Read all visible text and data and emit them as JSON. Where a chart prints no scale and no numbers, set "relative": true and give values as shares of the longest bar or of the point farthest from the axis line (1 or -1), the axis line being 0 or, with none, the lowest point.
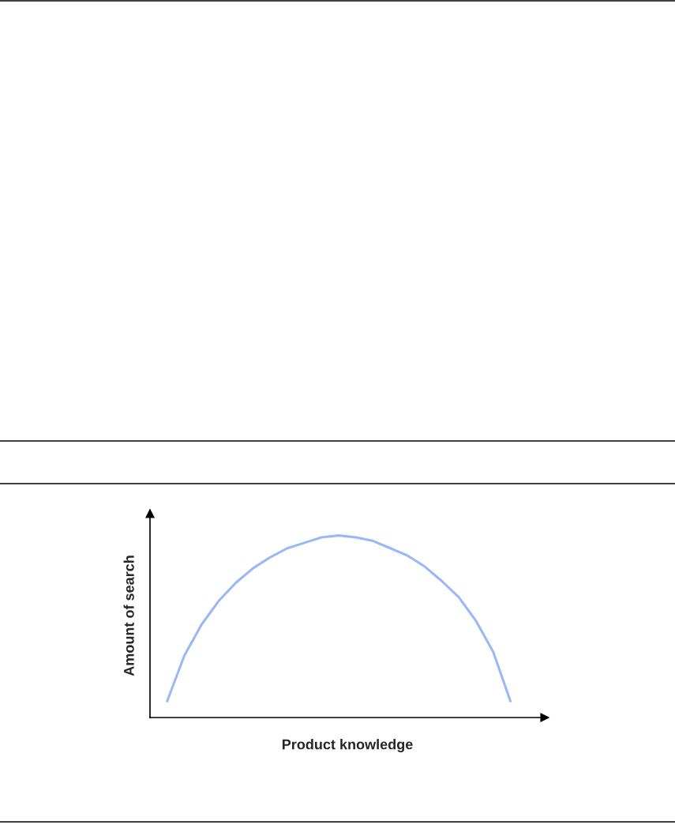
{
  "chart_data": {
    "type": "line",
    "relative": true,
    "xlabel": "Product knowledge",
    "ylabel": "Amount of search",
    "categories": [
      null,
      null,
      null,
      null,
      null,
      null,
      null,
      null,
      null,
      null,
      null,
      null,
      null,
      null,
      null,
      null,
      null,
      null,
      null,
      null,
      null
    ],
    "series": [
      {
        "color": "#9ab8f5",
        "values": [
          0.09,
          0.34,
          0.51,
          0.64,
          0.74,
          0.82,
          0.88,
          0.93,
          0.96,
          0.99,
          1,
          0.99,
          0.97,
          0.93,
          0.89,
          0.83,
          0.75,
          0.66,
          0.53,
          0.36,
          0.09
        ]
      }
    ],
    "grid": false,
    "legend": false,
    "marker": "none",
    "line_style": "solid"
  }
}
